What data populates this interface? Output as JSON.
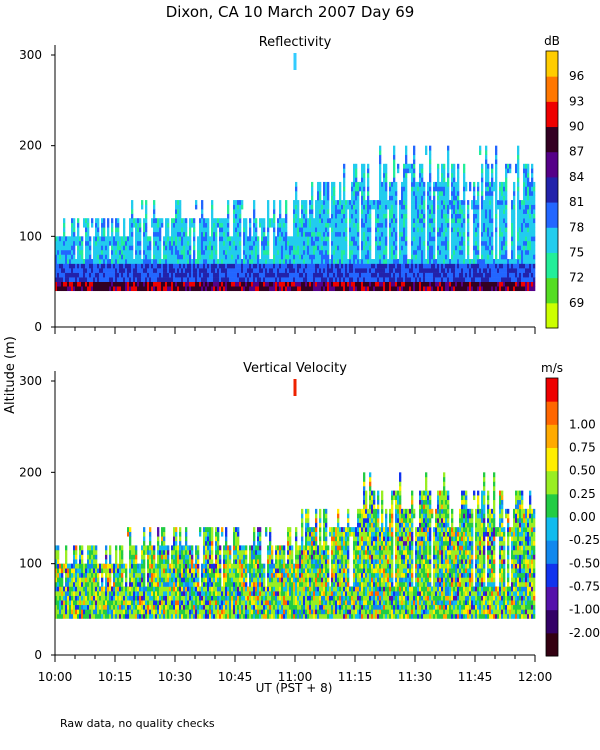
{
  "title": "Dixon, CA 10 March 2007  Day  69",
  "y_axis_label": "Altitude (m)",
  "x_axis_label": "UT  (PST + 8)",
  "footnote": "Raw data, no quality checks",
  "chart_data": [
    {
      "type": "heatmap",
      "title": "Reflectivity",
      "unit": "dB",
      "xlim": [
        "10:00",
        "12:00"
      ],
      "ylim": [
        0,
        300
      ],
      "x_ticks": [
        "10:00",
        "10:15",
        "10:30",
        "10:45",
        "11:00",
        "11:15",
        "11:30",
        "11:45",
        "12:00"
      ],
      "y_ticks": [
        0,
        100,
        200,
        300
      ],
      "marker_time": "11:00",
      "marker_color": "#33ccff",
      "data_extent": {
        "min_altitude_m": 40,
        "typical_top_m": 120,
        "max_top_m": 200
      },
      "colorbar": {
        "ticks": [
          69,
          72,
          75,
          78,
          81,
          84,
          87,
          90,
          93,
          96
        ],
        "colors": [
          "#ccff00",
          "#55dd22",
          "#22ee99",
          "#22ccee",
          "#2266ff",
          "#2222aa",
          "#550088",
          "#330022",
          "#ee0000",
          "#ff7700",
          "#ffcc00"
        ]
      }
    },
    {
      "type": "heatmap",
      "title": "Vertical Velocity",
      "unit": "m/s",
      "xlim": [
        "10:00",
        "12:00"
      ],
      "ylim": [
        0,
        300
      ],
      "x_ticks": [
        "10:00",
        "10:15",
        "10:30",
        "10:45",
        "11:00",
        "11:15",
        "11:30",
        "11:45",
        "12:00"
      ],
      "y_ticks": [
        0,
        100,
        200,
        300
      ],
      "marker_time": "11:00",
      "marker_color": "#ee2200",
      "data_extent": {
        "min_altitude_m": 40,
        "typical_top_m": 120,
        "max_top_m": 200
      },
      "colorbar": {
        "ticks": [
          "-2.00",
          "-1.00",
          "-0.75",
          "-0.50",
          "-0.25",
          "0.00",
          "0.25",
          "0.50",
          "0.75",
          "1.00"
        ],
        "colors": [
          "#330011",
          "#330066",
          "#5511aa",
          "#1133ee",
          "#1188ee",
          "#11bbee",
          "#22cc44",
          "#99ee22",
          "#ffee00",
          "#ffaa00",
          "#ff6600",
          "#ee0000"
        ]
      }
    }
  ]
}
